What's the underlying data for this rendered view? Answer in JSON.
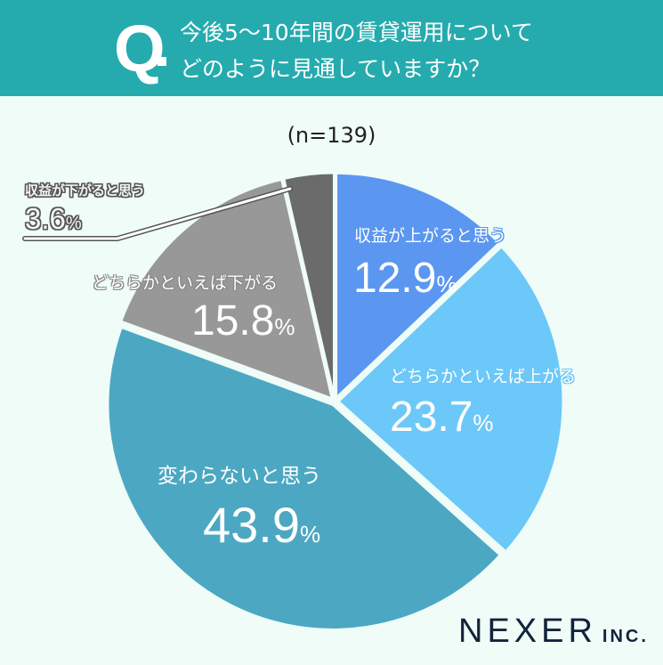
{
  "header": {
    "q_mark": "Q",
    "question_line1": "今後5〜10年間の賃貸運用について",
    "question_line2": "どのように見通していますか？"
  },
  "sample": "(n=139)",
  "slices": [
    {
      "label": "収益が上がると思う",
      "value": "12.9",
      "unit": "%",
      "color": "#5b97f0"
    },
    {
      "label": "どちらかといえば上がる",
      "value": "23.7",
      "unit": "%",
      "color": "#6cc8f8"
    },
    {
      "label": "変わらないと思う",
      "value": "43.9",
      "unit": "%",
      "color": "#4ca8c2"
    },
    {
      "label": "どちらかといえば下がる",
      "value": "15.8",
      "unit": "%",
      "color": "#989898"
    },
    {
      "label": "収益が下がると思う",
      "value": "3.6",
      "unit": "%",
      "color": "#6b6b6b"
    }
  ],
  "logo": {
    "name": "NEXER",
    "suffix": "INC."
  },
  "colors": {
    "header_bg": "#25abae",
    "page_bg": "#effcf8"
  },
  "chart_data": {
    "type": "pie",
    "title": "今後5〜10年間の賃貸運用についてどのように見通していますか？",
    "subtitle": "(n=139)",
    "categories": [
      "収益が上がると思う",
      "どちらかといえば上がる",
      "変わらないと思う",
      "どちらかといえば下がる",
      "収益が下がると思う"
    ],
    "values": [
      12.9,
      23.7,
      43.9,
      15.8,
      3.6
    ],
    "unit": "%",
    "start_angle": "12 o'clock, clockwise",
    "legend": "none (direct labels)"
  }
}
